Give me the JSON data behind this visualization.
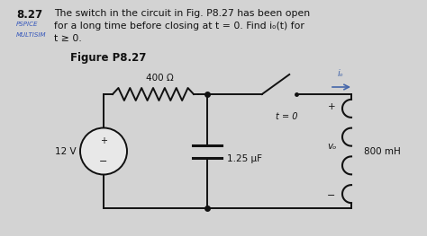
{
  "background_color": "#d3d3d3",
  "title_number": "8.27",
  "title_text": "The switch in the circuit in Fig. P8.27 has been open",
  "title_line2": "for a long time before closing at t = 0. Find iₒ(t) for",
  "title_line3": "t ≥ 0.",
  "label_pspice": "PSPICE",
  "label_multisim": "MULTISIM",
  "figure_label": "Figure P8.27",
  "resistor_label": "400 Ω",
  "capacitor_label": "1.25 μF",
  "inductor_label": "800 mH",
  "source_label": "12 V",
  "switch_label": "t = 0",
  "io_label": "iₒ",
  "vo_label": "vₒ",
  "plus": "+",
  "minus": "−",
  "circuit_bg": "#e8e8e8",
  "text_color": "#111111",
  "circuit_color": "#111111",
  "pspice_color": "#3355bb",
  "multisim_color": "#3355bb"
}
